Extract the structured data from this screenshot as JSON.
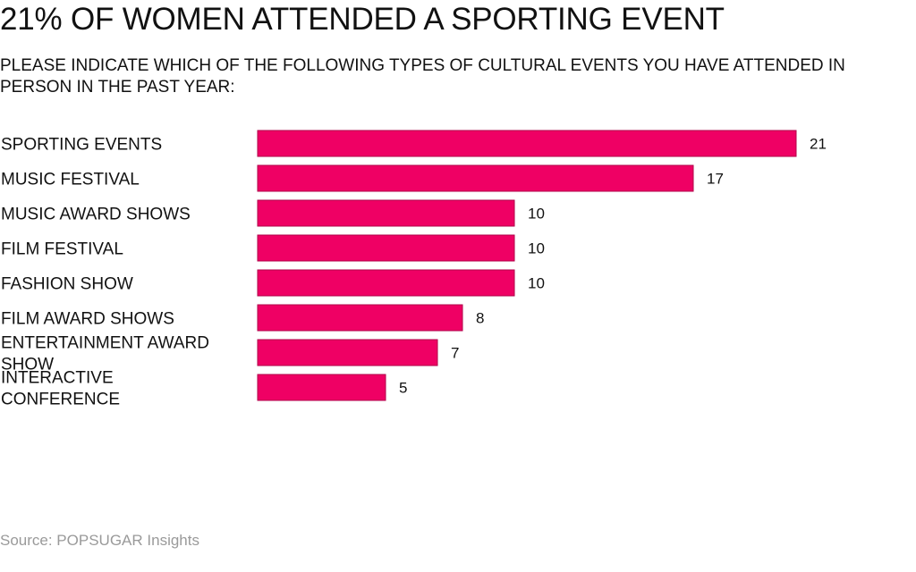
{
  "chart_data": {
    "type": "bar",
    "orientation": "horizontal",
    "title": "21% OF WOMEN ATTENDED A SPORTING EVENT",
    "subtitle": "PLEASE INDICATE WHICH OF THE FOLLOWING TYPES OF CULTURAL EVENTS YOU HAVE ATTENDED IN PERSON IN THE PAST YEAR:",
    "categories": [
      "SPORTING EVENTS",
      "MUSIC FESTIVAL",
      "MUSIC AWARD SHOWS",
      "FILM FESTIVAL",
      "FASHION SHOW",
      "FILM AWARD SHOWS",
      "ENTERTAINMENT AWARD SHOW",
      "INTERACTIVE CONFERENCE"
    ],
    "values": [
      21,
      17,
      10,
      10,
      10,
      8,
      7,
      5
    ],
    "data_labels": [
      "21",
      "17",
      "10",
      "10",
      "10",
      "8",
      "7",
      "5"
    ],
    "xlim": [
      0,
      21
    ],
    "grid": false,
    "bar_color": "#ef0064",
    "source": "Source: POPSUGAR Insights"
  }
}
